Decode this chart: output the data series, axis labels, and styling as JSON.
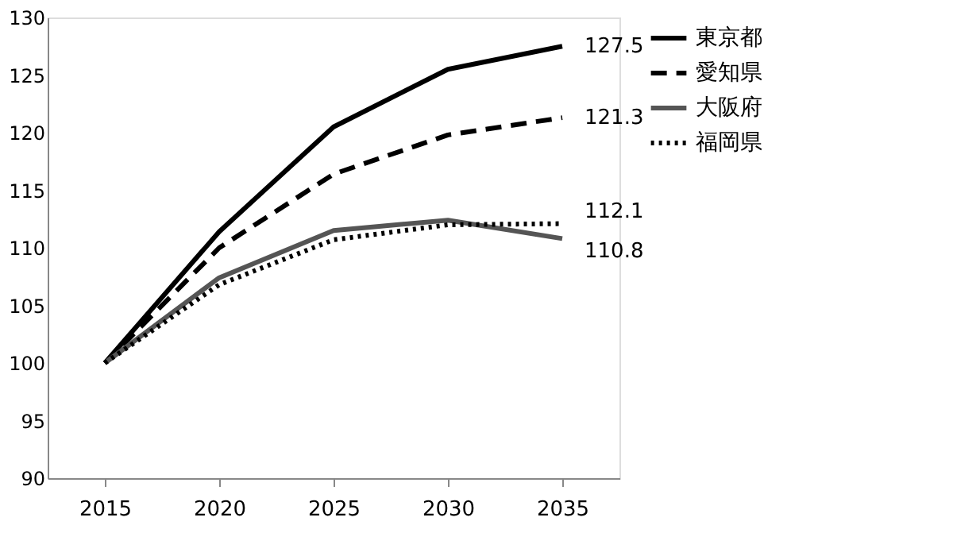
{
  "chart_data": {
    "type": "line",
    "categories": [
      "2015",
      "2020",
      "2025",
      "2030",
      "2035"
    ],
    "series": [
      {
        "name": "東京都",
        "color": "#000000",
        "line_style": "solid",
        "values": [
          100,
          111.4,
          120.5,
          125.5,
          127.5
        ],
        "value_labels": [
          null,
          null,
          null,
          null,
          "127.5"
        ]
      },
      {
        "name": "愛知県",
        "color": "#000000",
        "line_style": "dashed",
        "values": [
          100,
          110.0,
          116.4,
          119.8,
          121.3
        ],
        "value_labels": [
          null,
          null,
          null,
          null,
          "121.3"
        ]
      },
      {
        "name": "大阪府",
        "color": "#555555",
        "line_style": "solid",
        "values": [
          100,
          107.4,
          111.5,
          112.4,
          110.8
        ],
        "value_labels": [
          null,
          null,
          null,
          null,
          "110.8"
        ]
      },
      {
        "name": "福岡県",
        "color": "#000000",
        "line_style": "dotted",
        "values": [
          100,
          106.8,
          110.7,
          112.0,
          112.1
        ],
        "value_labels": [
          null,
          null,
          null,
          null,
          "112.1"
        ]
      }
    ],
    "ylim": [
      90,
      130
    ],
    "yticks": [
      90,
      95,
      100,
      105,
      110,
      115,
      120,
      125,
      130
    ],
    "grid": false,
    "legend": "right",
    "marker": "none"
  }
}
